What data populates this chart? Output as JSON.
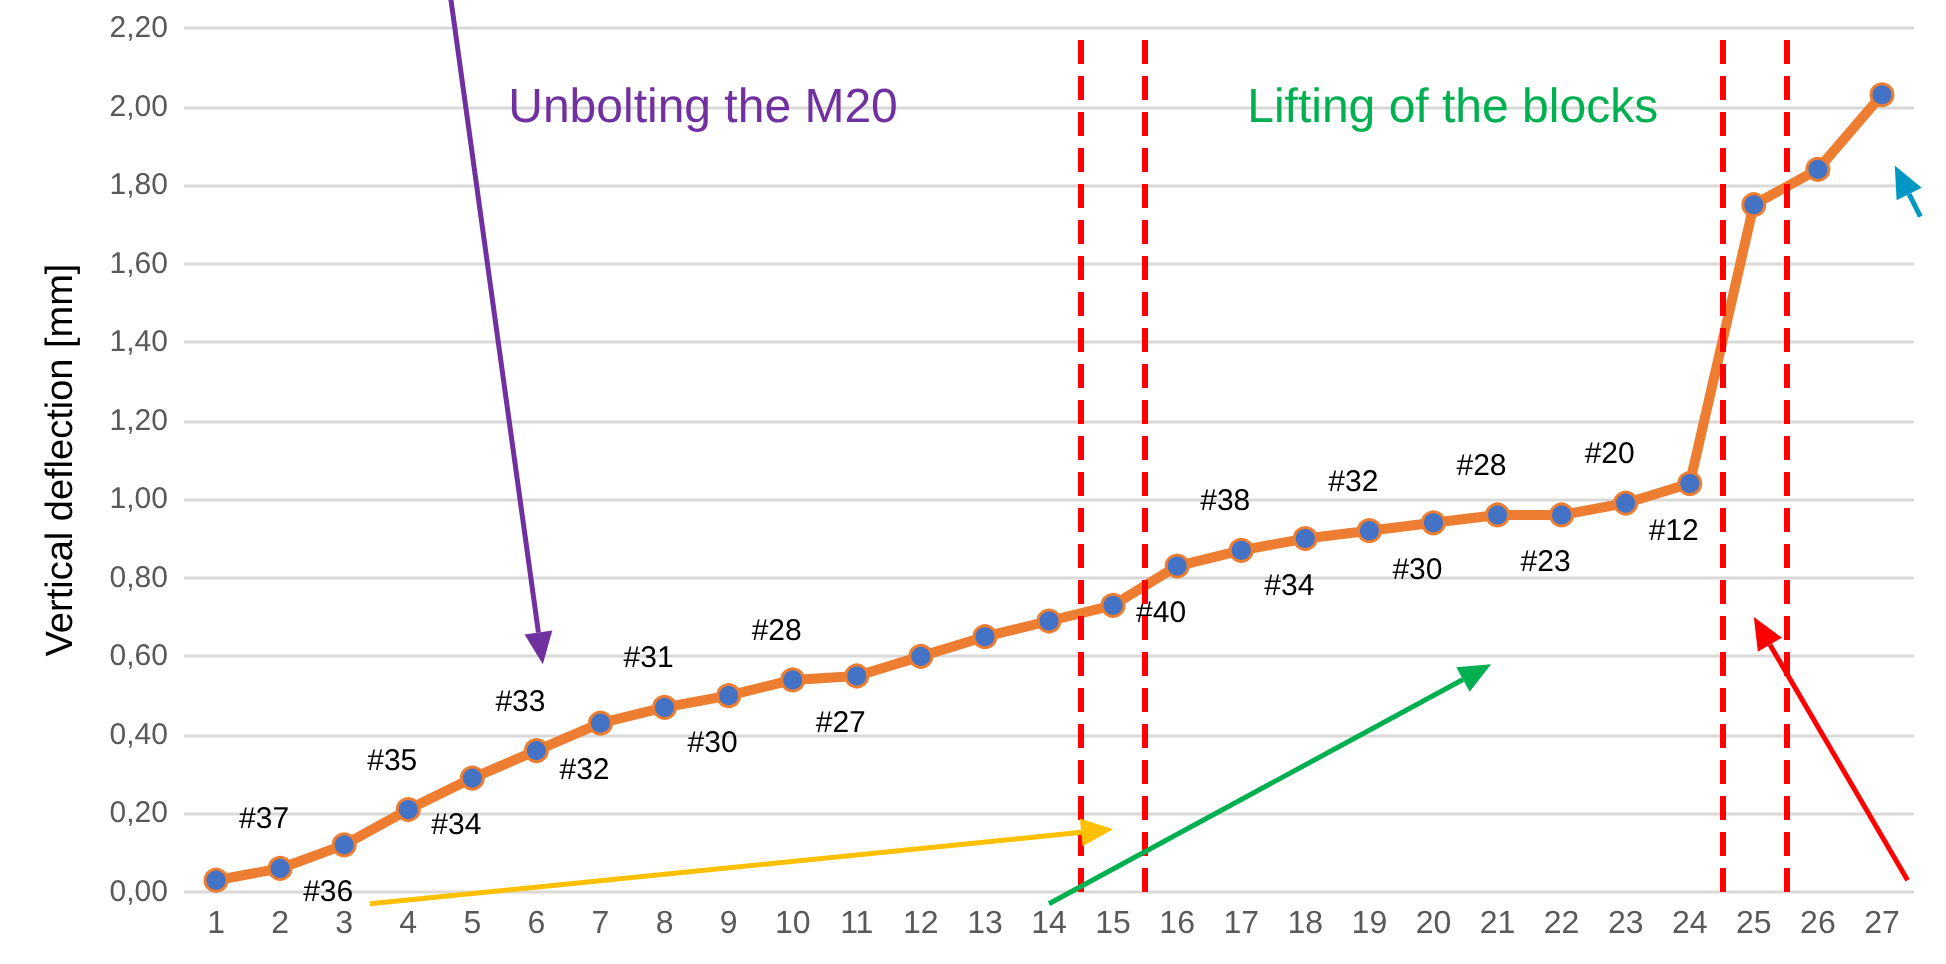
{
  "chart_data": {
    "type": "line",
    "ylabel": "Vertical deflection [mm]",
    "x": [
      1,
      2,
      3,
      4,
      5,
      6,
      7,
      8,
      9,
      10,
      11,
      12,
      13,
      14,
      15,
      16,
      17,
      18,
      19,
      20,
      21,
      22,
      23,
      24,
      25,
      26,
      27
    ],
    "series": [
      {
        "color": "#ed7d31",
        "colors": [
          "#4472c4",
          "#4472c4",
          "#4472c4",
          "#4472c4",
          "#4472c4",
          "#4472c4",
          "#4472c4",
          "#4472c4",
          "#4472c4",
          "#4472c4",
          "#4472c4",
          "#4472c4",
          "#4472c4",
          "#4472c4",
          "#4472c4",
          "#4472c4",
          "#4472c4",
          "#4472c4",
          "#4472c4",
          "#4472c4",
          "#4472c4",
          "#4472c4",
          "#4472c4",
          "#4472c4",
          "#4472c4",
          "#4472c4",
          "#4472c4"
        ],
        "values": [
          0.03,
          0.06,
          0.12,
          0.21,
          0.29,
          0.36,
          0.43,
          0.47,
          0.5,
          0.54,
          0.55,
          0.6,
          0.65,
          0.69,
          0.73,
          0.83,
          0.87,
          0.9,
          0.92,
          0.94,
          0.96,
          0.96,
          0.99,
          1.04,
          1.75,
          1.84,
          2.03
        ]
      }
    ],
    "xlim": [
      0.5,
      27.5
    ],
    "xticks": [
      1,
      2,
      3,
      4,
      5,
      6,
      7,
      8,
      9,
      10,
      11,
      12,
      13,
      14,
      15,
      16,
      17,
      18,
      19,
      20,
      21,
      22,
      23,
      24,
      25,
      26,
      27
    ],
    "ylim": [
      0,
      2.2
    ],
    "yticks": [
      {
        "value": 0,
        "label": "0,00"
      },
      {
        "value": 0.2,
        "label": "0,20"
      },
      {
        "value": 0.4,
        "label": "0,40"
      },
      {
        "value": 0.6,
        "label": "0,60"
      },
      {
        "value": 0.8,
        "label": "0,80"
      },
      {
        "value": 1.0,
        "label": "1,00"
      },
      {
        "value": 1.2,
        "label": "1,20"
      },
      {
        "value": 1.4,
        "label": "1,40"
      },
      {
        "value": 1.6,
        "label": "1,60"
      },
      {
        "value": 1.8,
        "label": "1,80"
      },
      {
        "value": 2.0,
        "label": "2,00"
      },
      {
        "value": 2.2,
        "label": "2,20"
      }
    ],
    "grid": "y",
    "marker": "circle",
    "line_style": "solid",
    "ref_lines": [
      {
        "axis": "x",
        "value": 14.5,
        "color": "#ff0000",
        "line_style": "dashed"
      },
      {
        "axis": "x",
        "value": 15.5,
        "color": "#ff0000",
        "line_style": "dashed"
      },
      {
        "axis": "x",
        "value": 24.5,
        "color": "#ff0000",
        "line_style": "dashed"
      },
      {
        "axis": "x",
        "value": 25.5,
        "color": "#ff0000",
        "line_style": "dashed"
      }
    ],
    "annotations": [
      "Unbolting the M20",
      "Lifting of the blocks",
      {
        "text": "#37",
        "x": 2,
        "y": 0.06
      },
      {
        "text": "#36",
        "x": 3,
        "y": 0.12
      },
      {
        "text": "#35",
        "x": 4,
        "y": 0.21
      },
      {
        "text": "#34",
        "x": 5,
        "y": 0.29
      },
      {
        "text": "#33",
        "x": 6,
        "y": 0.36
      },
      {
        "text": "#32",
        "x": 7,
        "y": 0.43
      },
      {
        "text": "#31",
        "x": 8,
        "y": 0.47
      },
      {
        "text": "#30",
        "x": 9,
        "y": 0.5
      },
      {
        "text": "#28",
        "x": 10,
        "y": 0.54
      },
      {
        "text": "#27",
        "x": 11,
        "y": 0.55
      },
      {
        "text": "#40",
        "x": 16,
        "y": 0.83
      },
      {
        "text": "#38",
        "x": 17,
        "y": 0.87
      },
      {
        "text": "#34",
        "x": 18,
        "y": 0.9
      },
      {
        "text": "#32",
        "x": 19,
        "y": 0.92
      },
      {
        "text": "#30",
        "x": 20,
        "y": 0.94
      },
      {
        "text": "#28",
        "x": 21,
        "y": 0.96
      },
      {
        "text": "#23",
        "x": 22,
        "y": 0.96
      },
      {
        "text": "#20",
        "x": 23,
        "y": 0.99
      },
      {
        "text": "#12",
        "x": 24,
        "y": 1.04
      }
    ]
  }
}
